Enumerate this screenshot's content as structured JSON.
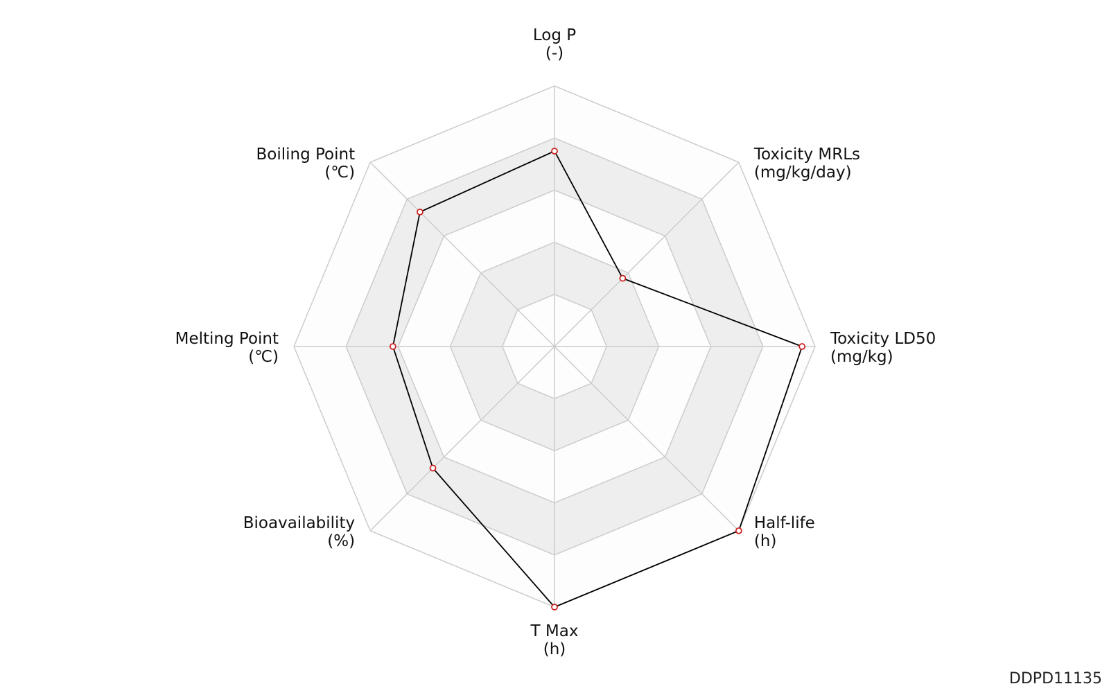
{
  "chart_data": {
    "type": "radar",
    "axes": [
      {
        "label": "Log P",
        "unit": "(-)",
        "value": 0.75
      },
      {
        "label": "Toxicity MRLs",
        "unit": "(mg/kg/day)",
        "value": 0.37
      },
      {
        "label": "Toxicity LD50",
        "unit": "(mg/kg)",
        "value": 0.95
      },
      {
        "label": "Half-life",
        "unit": "(h)",
        "value": 1.0
      },
      {
        "label": "T Max",
        "unit": "(h)",
        "value": 1.0
      },
      {
        "label": "Bioavailability",
        "unit": "(%)",
        "value": 0.66
      },
      {
        "label": "Melting Point",
        "unit": "(℃)",
        "value": 0.62
      },
      {
        "label": "Boiling Point",
        "unit": "(℃)",
        "value": 0.73
      }
    ],
    "range": [
      0,
      1
    ],
    "rings": 5,
    "colors": {
      "line": "#000000",
      "marker_edge": "#cc2222",
      "marker_fill": "#ffffff",
      "band_shaded": "#eeeeee",
      "band_light": "#fdfdfd",
      "grid": "#cccccc"
    }
  },
  "identifier": "DDPD11135"
}
